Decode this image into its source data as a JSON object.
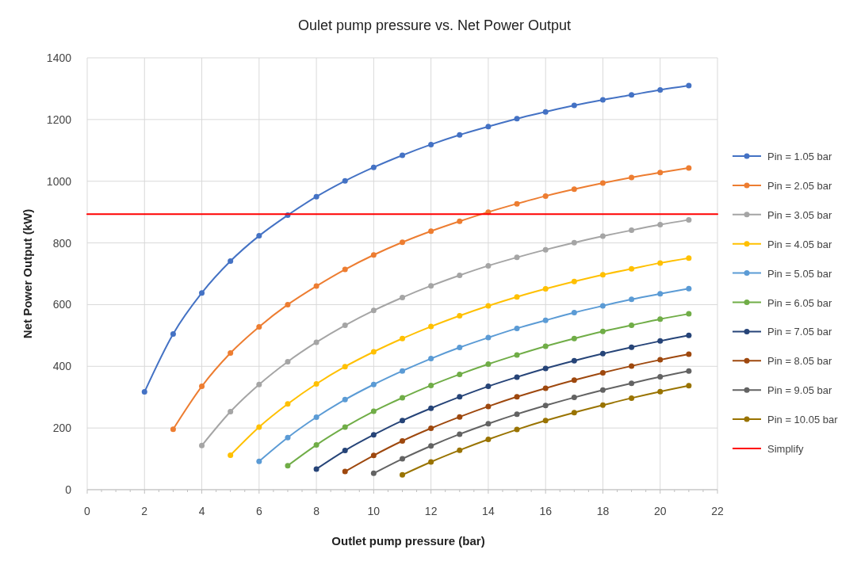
{
  "chart_data": {
    "type": "line",
    "title": "Oulet pump pressure vs. Net Power Output",
    "xlabel": "Outlet pump pressure (bar)",
    "ylabel": "Net Power Output (kW)",
    "xlim": [
      0,
      22
    ],
    "xticks": [
      0,
      2,
      4,
      6,
      8,
      10,
      12,
      14,
      16,
      18,
      20,
      22
    ],
    "ylim": [
      0,
      1400
    ],
    "yticks": [
      0,
      200,
      400,
      600,
      800,
      1000,
      1200,
      1400
    ],
    "grid": true,
    "legend": "right",
    "marker": "circle",
    "line_style": "solid",
    "series": [
      {
        "name": "Pin = 1.05 bar",
        "color": "#4472c4",
        "x": [
          2,
          3,
          4,
          5,
          6,
          7,
          8,
          9,
          10,
          11,
          12,
          13,
          14,
          15,
          16,
          17,
          18,
          19,
          20,
          21
        ],
        "values": [
          317,
          505,
          638,
          741,
          823,
          890,
          950,
          1001,
          1045,
          1084,
          1119,
          1150,
          1177,
          1203,
          1225,
          1246,
          1264,
          1280,
          1296,
          1310
        ]
      },
      {
        "name": "Pin = 2.05 bar",
        "color": "#ed7d31",
        "x": [
          3,
          4,
          5,
          6,
          7,
          8,
          9,
          10,
          11,
          12,
          13,
          14,
          15,
          16,
          17,
          18,
          19,
          20,
          21
        ],
        "values": [
          196,
          335,
          443,
          528,
          600,
          660,
          714,
          761,
          802,
          838,
          870,
          900,
          927,
          952,
          974,
          994,
          1012,
          1028,
          1043
        ]
      },
      {
        "name": "Pin = 3.05 bar",
        "color": "#a5a5a5",
        "x": [
          4,
          5,
          6,
          7,
          8,
          9,
          10,
          11,
          12,
          13,
          14,
          15,
          16,
          17,
          18,
          19,
          20,
          21
        ],
        "values": [
          143,
          253,
          341,
          415,
          478,
          533,
          581,
          623,
          661,
          695,
          726,
          753,
          778,
          801,
          822,
          841,
          859,
          875
        ]
      },
      {
        "name": "Pin = 4.05 bar",
        "color": "#ffc000",
        "x": [
          5,
          6,
          7,
          8,
          9,
          10,
          11,
          12,
          13,
          14,
          15,
          16,
          17,
          18,
          19,
          20,
          21
        ],
        "values": [
          112,
          203,
          278,
          343,
          399,
          447,
          490,
          529,
          564,
          596,
          625,
          651,
          675,
          697,
          716,
          735,
          751
        ]
      },
      {
        "name": "Pin = 5.05 bar",
        "color": "#5b9bd5",
        "x": [
          6,
          7,
          8,
          9,
          10,
          11,
          12,
          13,
          14,
          15,
          16,
          17,
          18,
          19,
          20,
          21
        ],
        "values": [
          92,
          169,
          235,
          292,
          341,
          385,
          425,
          461,
          493,
          523,
          549,
          574,
          596,
          617,
          635,
          652
        ]
      },
      {
        "name": "Pin = 6.05 bar",
        "color": "#70ad47",
        "x": [
          7,
          8,
          9,
          10,
          11,
          12,
          13,
          14,
          15,
          16,
          17,
          18,
          19,
          20,
          21
        ],
        "values": [
          78,
          145,
          203,
          254,
          298,
          338,
          374,
          407,
          437,
          465,
          490,
          513,
          533,
          553,
          570
        ]
      },
      {
        "name": "Pin = 7.05 bar",
        "color": "#264478",
        "x": [
          8,
          9,
          10,
          11,
          12,
          13,
          14,
          15,
          16,
          17,
          18,
          19,
          20,
          21
        ],
        "values": [
          67,
          127,
          178,
          224,
          264,
          301,
          335,
          365,
          393,
          418,
          441,
          462,
          482,
          500
        ]
      },
      {
        "name": "Pin = 8.05 bar",
        "color": "#9e480e",
        "x": [
          9,
          10,
          11,
          12,
          13,
          14,
          15,
          16,
          17,
          18,
          19,
          20,
          21
        ],
        "values": [
          59,
          111,
          158,
          199,
          236,
          270,
          301,
          329,
          355,
          379,
          401,
          421,
          439
        ]
      },
      {
        "name": "Pin = 9.05 bar",
        "color": "#636363",
        "x": [
          10,
          11,
          12,
          13,
          14,
          15,
          16,
          17,
          18,
          19,
          20,
          21
        ],
        "values": [
          53,
          100,
          142,
          180,
          214,
          245,
          273,
          299,
          323,
          345,
          366,
          385
        ]
      },
      {
        "name": "Pin = 10.05 bar",
        "color": "#997300",
        "x": [
          11,
          12,
          13,
          14,
          15,
          16,
          17,
          18,
          19,
          20,
          21
        ],
        "values": [
          48,
          90,
          128,
          163,
          195,
          224,
          250,
          274,
          297,
          318,
          337
        ]
      },
      {
        "name": "Simplify",
        "color": "#ff0000",
        "marker": "none",
        "x": [
          0,
          22
        ],
        "values": [
          893,
          893
        ]
      }
    ]
  }
}
